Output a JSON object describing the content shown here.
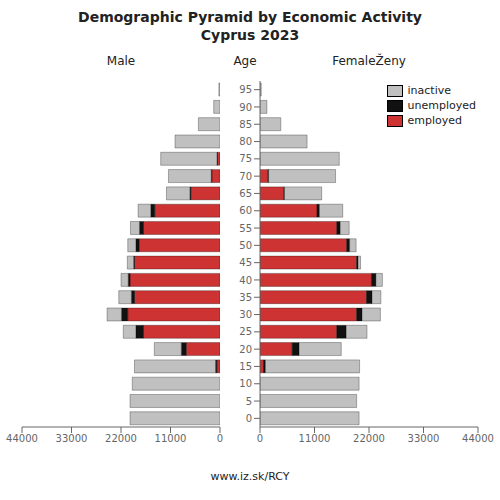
{
  "chart_data": [
    {
      "type": "bar",
      "orientation": "horizontal",
      "stacked": true,
      "grid": false,
      "tick_labels": "x",
      "title": "Demographic Pyramid by Economic Activity\nCyprus 2023",
      "subtitle": "Male",
      "annotations": [
        "www.iz.sk/RCY"
      ],
      "categories": [
        0,
        5,
        10,
        15,
        20,
        25,
        30,
        35,
        40,
        45,
        50,
        55,
        60,
        65,
        70,
        75,
        80,
        85,
        90,
        95
      ],
      "series": [
        {
          "name": "employed",
          "color": "#cd3333",
          "values": [
            0,
            0,
            0,
            700,
            7500,
            17000,
            20500,
            19000,
            20000,
            19000,
            18000,
            17000,
            14500,
            6500,
            1800,
            600,
            0,
            0,
            0,
            0
          ]
        },
        {
          "name": "unemployed",
          "color": "#111111",
          "values": [
            0,
            0,
            0,
            300,
            1100,
            1700,
            1400,
            700,
            400,
            200,
            700,
            900,
            900,
            200,
            150,
            80,
            0,
            0,
            0,
            0
          ]
        },
        {
          "name": "inactive",
          "color": "#c0c0c0",
          "values": [
            20000,
            20000,
            19500,
            18000,
            6000,
            2800,
            3200,
            2800,
            1600,
            1400,
            1800,
            2000,
            2800,
            5200,
            9500,
            12500,
            10000,
            4800,
            1400,
            250
          ]
        }
      ],
      "xlim": [
        0,
        44000
      ],
      "xticks": [
        0,
        11000,
        22000,
        33000,
        44000
      ]
    },
    {
      "type": "bar",
      "orientation": "horizontal",
      "stacked": true,
      "grid": false,
      "legend": "upper right",
      "subtitle": "FemaleŽeny",
      "ylabel": "Age",
      "categories": [
        0,
        5,
        10,
        15,
        20,
        25,
        30,
        35,
        40,
        45,
        50,
        55,
        60,
        65,
        70,
        75,
        80,
        85,
        90,
        95
      ],
      "series": [
        {
          "name": "employed",
          "color": "#cd3333",
          "values": [
            0,
            0,
            0,
            700,
            6500,
            15500,
            19500,
            21500,
            22500,
            19500,
            17500,
            15500,
            11500,
            4800,
            1600,
            0,
            0,
            0,
            0,
            0
          ]
        },
        {
          "name": "unemployed",
          "color": "#111111",
          "values": [
            0,
            0,
            0,
            400,
            1400,
            1900,
            1100,
            1100,
            900,
            300,
            600,
            700,
            500,
            150,
            150,
            0,
            0,
            0,
            0,
            0
          ]
        },
        {
          "name": "inactive",
          "color": "#c0c0c0",
          "values": [
            20000,
            19500,
            20000,
            19000,
            8500,
            4200,
            3700,
            1800,
            1300,
            500,
            1300,
            1800,
            4700,
            7500,
            13500,
            16000,
            9500,
            4200,
            1400,
            250
          ]
        }
      ],
      "xlim": [
        0,
        44000
      ],
      "xticks": [
        0,
        11000,
        22000,
        33000,
        44000
      ]
    }
  ]
}
